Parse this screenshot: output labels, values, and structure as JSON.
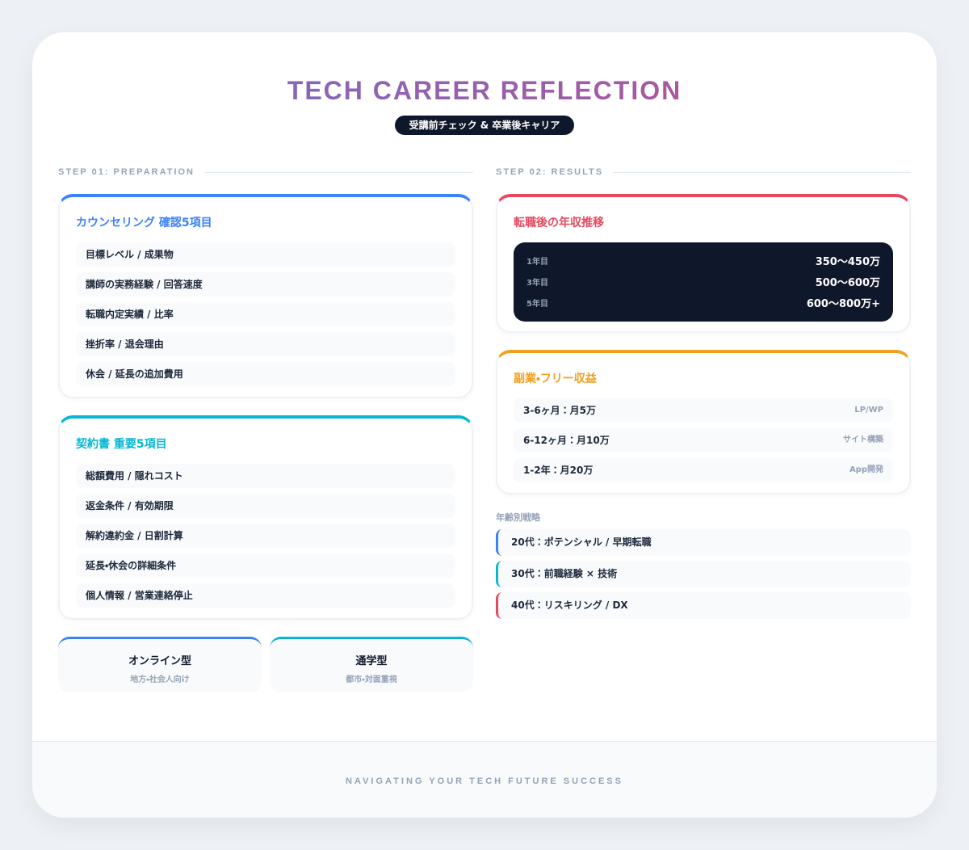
{
  "header": {
    "title": "TECH CAREER REFLECTION",
    "badge": "受講前チェック & 卒業後キャリア"
  },
  "step1": {
    "label": "STEP 01: PREPARATION",
    "counseling": {
      "title": "カウンセリング 確認5項目",
      "items": [
        "目標レベル / 成果物",
        "講師の実務経験 / 回答速度",
        "転職内定実績 / 比率",
        "挫折率 / 退会理由",
        "休会 / 延長の追加費用"
      ]
    },
    "contract": {
      "title": "契約書 重要5項目",
      "items": [
        "総額費用 / 隠れコスト",
        "返金条件 / 有効期限",
        "解約違約金 / 日割計算",
        "延長・休会の詳細条件",
        "個人情報 / 営業連絡停止"
      ]
    },
    "types": [
      {
        "name": "オンライン型",
        "note": "地方・社会人向け"
      },
      {
        "name": "通学型",
        "note": "都市・対面重視"
      }
    ]
  },
  "step2": {
    "label": "STEP 02: RESULTS",
    "salary": {
      "title": "転職後の年収推移",
      "rows": [
        [
          "1年目",
          "350〜450万"
        ],
        [
          "3年目",
          "500〜600万"
        ],
        [
          "5年目",
          "600〜800万+"
        ]
      ]
    },
    "side": {
      "title": "副業・フリー収益",
      "rows": [
        [
          "3-6ヶ月：月5万",
          "LP/WP"
        ],
        [
          "6-12ヶ月：月10万",
          "サイト構築"
        ],
        [
          "1-2年：月20万",
          "App開発"
        ]
      ]
    },
    "age": {
      "title": "年齢別戦略",
      "items": [
        "20代：ポテンシャル / 早期転職",
        "30代：前職経験 × 技術",
        "40代：リスキリング / DX"
      ]
    }
  },
  "footer": {
    "text": "NAVIGATING YOUR TECH FUTURE SUCCESS"
  }
}
